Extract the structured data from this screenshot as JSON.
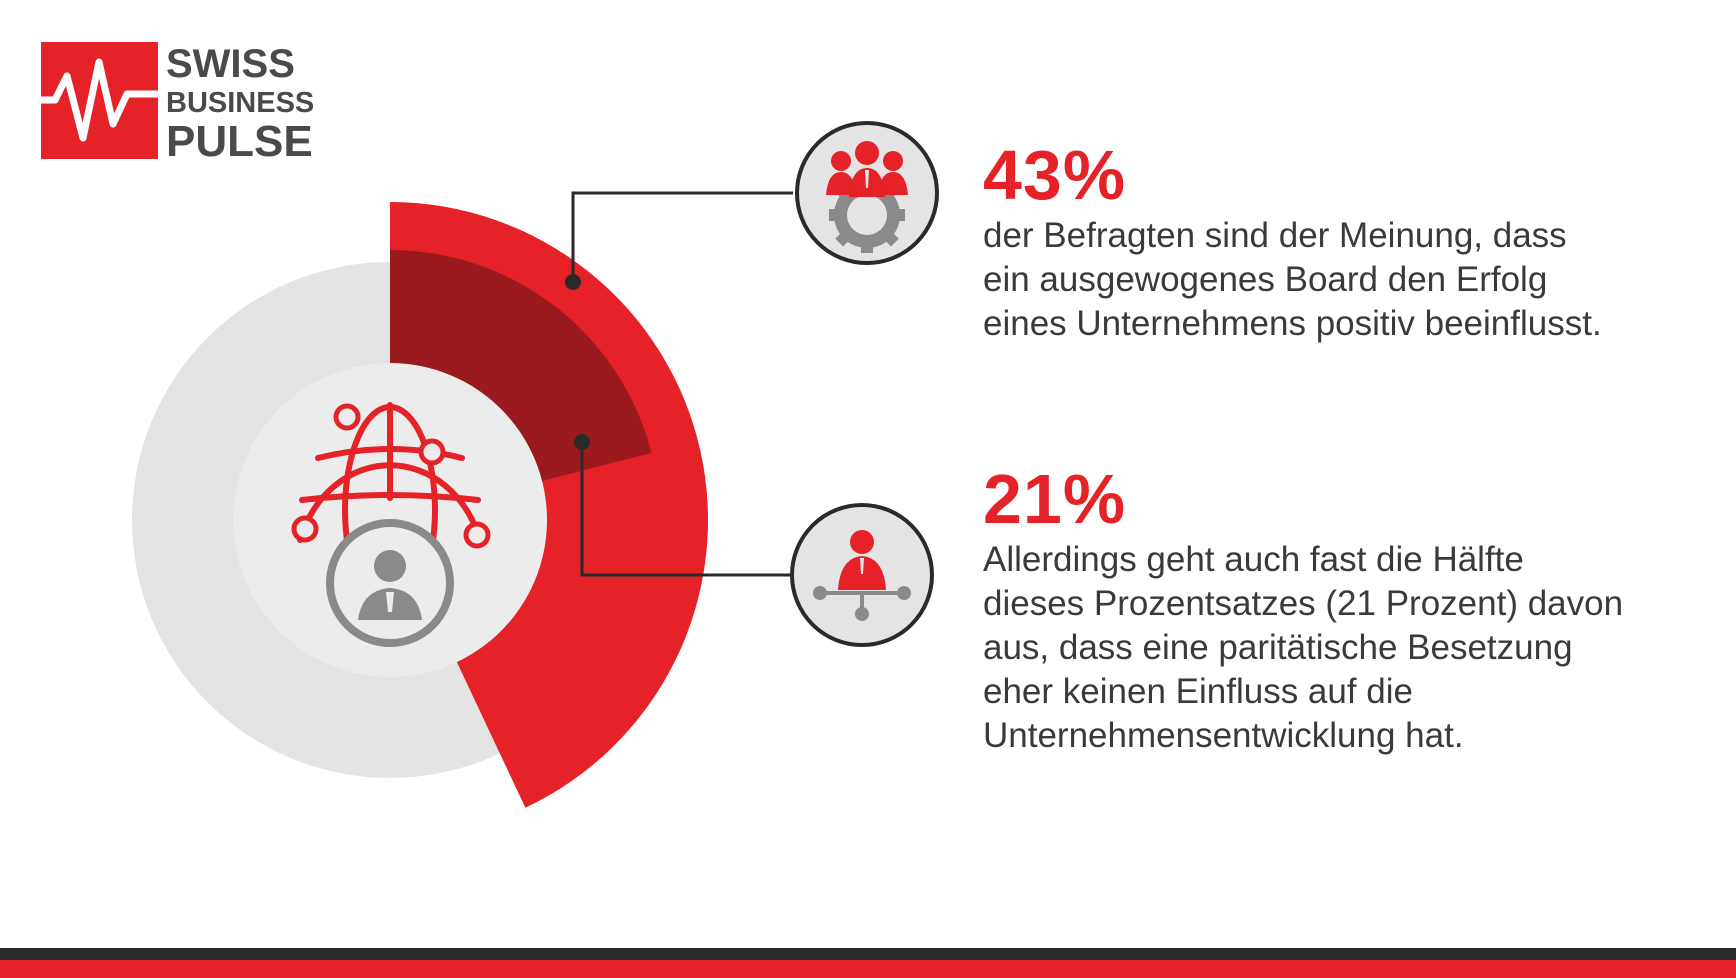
{
  "logo": {
    "line1": "SWISS",
    "line2": "BUSINESS",
    "line3": "PULSE"
  },
  "colors": {
    "accent": "#e42227",
    "accent_dark": "#9b1a1d",
    "ring_grey": "#e4e4e4",
    "inner_grey": "#ececec",
    "icon_grey": "#8a8a8a",
    "text": "#3a3a3a"
  },
  "chart_data": {
    "type": "pie",
    "slices": [
      {
        "value": 43,
        "color": "#e42227"
      },
      {
        "value": 21,
        "color": "#9b1a1d"
      }
    ]
  },
  "stats": [
    {
      "value": "43%",
      "text": "der Befragten sind der Meinung, dass ein ausgewogenes Board den Erfolg eines Unternehmens positiv beeinflusst.",
      "icon": "team-gear-icon"
    },
    {
      "value": "21%",
      "text": "Allerdings geht auch fast die Hälfte dieses Prozentsatzes (21 Prozent) davon aus, dass eine paritätische Besetzung eher keinen Einfluss auf die Unternehmensentwicklung hat.",
      "icon": "person-network-icon"
    }
  ],
  "center_icon": "globe-businessman-icon"
}
